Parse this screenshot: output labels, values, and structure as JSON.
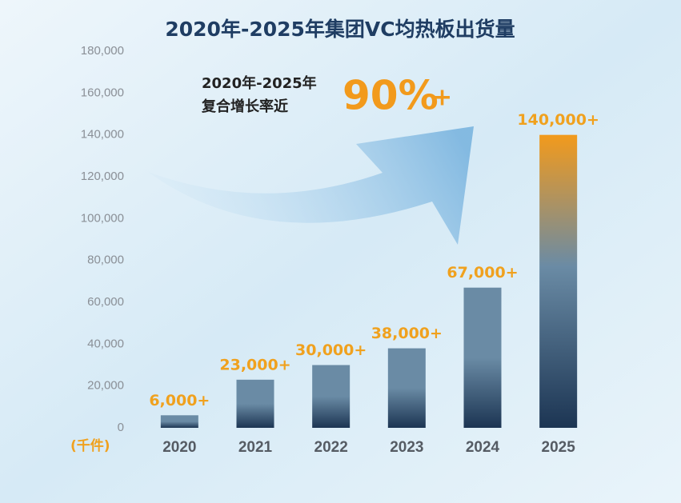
{
  "chart_data": {
    "type": "bar",
    "title": "2020年-2025年集团VC均热板出货量",
    "unit_label": "(千件)",
    "annotation_lines": [
      "2020年-2025年",
      "复合增长率近"
    ],
    "highlight": "90%",
    "highlight_suffix": "+",
    "categories": [
      "2020",
      "2021",
      "2022",
      "2023",
      "2024",
      "2025"
    ],
    "values": [
      6000,
      23000,
      30000,
      38000,
      67000,
      140000
    ],
    "value_labels": [
      "6,000+",
      "23,000+",
      "30,000+",
      "38,000+",
      "67,000+",
      "140,000+"
    ],
    "colors": [
      "#6a8ba5",
      "#6a8ba5",
      "#6a8ba5",
      "#6a8ba5",
      "#6a8ba5",
      "#f29a1c"
    ],
    "base_color": "#1c3553",
    "label_color": "#f0a11e",
    "ylim": [
      0,
      180000
    ],
    "yticks": [
      0,
      {
        "value": 20000,
        "label": "20,000"
      },
      {
        "value": 40000,
        "label": "40,000"
      },
      {
        "value": 60000,
        "label": "60,000"
      },
      {
        "value": 80000,
        "label": "80,000"
      },
      {
        "value": 100000,
        "label": "100,000"
      },
      {
        "value": 120000,
        "label": "120,000"
      },
      {
        "value": 140000,
        "label": "140,000"
      },
      {
        "value": 160000,
        "label": "160,000"
      },
      {
        "value": 180000,
        "label": "180,000"
      }
    ],
    "grid": false
  }
}
